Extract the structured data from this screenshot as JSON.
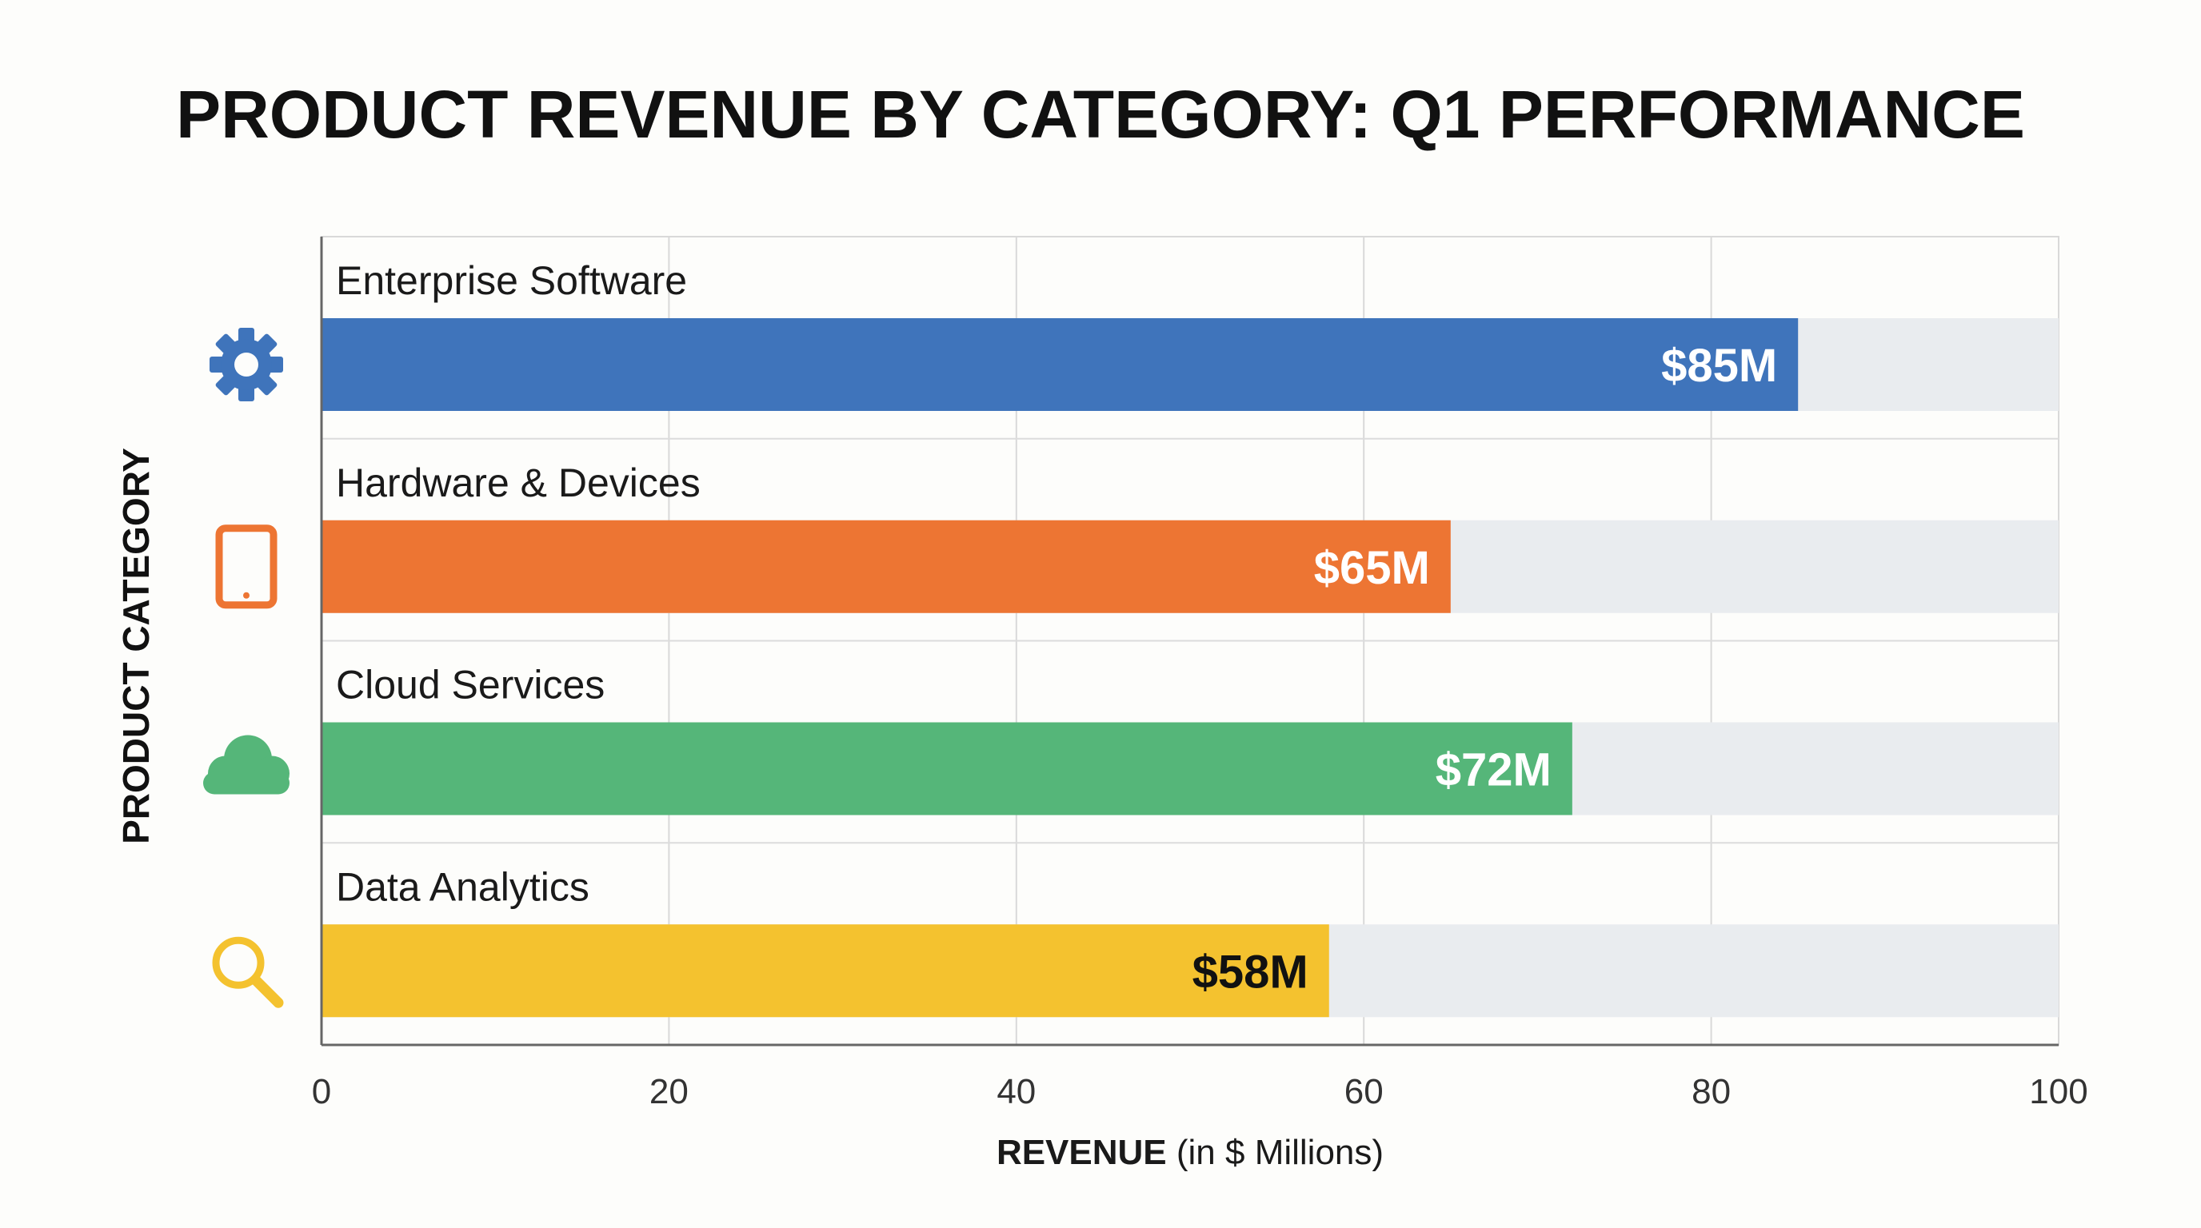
{
  "chart_data": {
    "type": "bar",
    "orientation": "horizontal",
    "title": "PRODUCT REVENUE BY CATEGORY: Q1 PERFORMANCE",
    "xlabel": {
      "bold": "REVENUE",
      "rest": " (in $ Millions)"
    },
    "ylabel": "PRODUCT CATEGORY",
    "xlim": [
      0,
      100
    ],
    "xticks": [
      "0",
      "20",
      "40",
      "60",
      "80",
      "100"
    ],
    "grid": true,
    "categories": [
      "Enterprise Software",
      "Hardware & Devices",
      "Cloud Services",
      "Data Analytics"
    ],
    "values": [
      85,
      65,
      72,
      58
    ],
    "value_labels": [
      "$85M",
      "$65M",
      "$72M",
      "$58M"
    ],
    "bar_colors": [
      "#3f74bb",
      "#ed7533",
      "#55b679",
      "#f4c22f"
    ],
    "value_label_colors": [
      "#ffffff",
      "#ffffff",
      "#ffffff",
      "#111111"
    ],
    "icons": [
      "gear-icon",
      "tablet-icon",
      "cloud-icon",
      "magnifier-icon"
    ],
    "icon_colors": [
      "#3f74bb",
      "#ed7533",
      "#55b679",
      "#f4c22f"
    ],
    "track_color": "#e9ecef"
  }
}
